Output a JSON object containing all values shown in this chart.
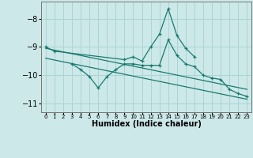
{
  "xlabel": "Humidex (Indice chaleur)",
  "bg_color": "#cce8e8",
  "grid_color": "#aad4d4",
  "line_color": "#1a7a6e",
  "xlim": [
    -0.5,
    23.5
  ],
  "ylim": [
    -11.3,
    -7.4
  ],
  "yticks": [
    -11,
    -10,
    -9,
    -8
  ],
  "xticks": [
    0,
    1,
    2,
    3,
    4,
    5,
    6,
    7,
    8,
    9,
    10,
    11,
    12,
    13,
    14,
    15,
    16,
    17,
    18,
    19,
    20,
    21,
    22,
    23
  ],
  "series": [
    {
      "x": [
        0,
        1,
        9,
        10,
        11,
        12,
        13,
        14,
        15,
        16,
        17
      ],
      "y": [
        -9.0,
        -9.15,
        -9.45,
        -9.35,
        -9.5,
        -9.0,
        -8.55,
        -7.65,
        -8.6,
        -9.05,
        -9.35
      ],
      "marker": true
    },
    {
      "x": [
        3,
        4,
        5,
        6,
        7,
        8,
        9,
        10,
        11,
        12,
        13,
        14,
        15,
        16,
        17,
        18,
        19,
        20,
        21,
        22,
        23
      ],
      "y": [
        -9.6,
        -9.8,
        -10.05,
        -10.45,
        -10.05,
        -9.8,
        -9.6,
        -9.6,
        -9.65,
        -9.65,
        -9.65,
        -8.75,
        -9.3,
        -9.6,
        -9.7,
        -10.0,
        -10.1,
        -10.15,
        -10.5,
        -10.65,
        -10.75
      ],
      "marker": true
    },
    {
      "x": [
        0,
        23
      ],
      "y": [
        -9.05,
        -10.5
      ],
      "marker": false
    },
    {
      "x": [
        0,
        23
      ],
      "y": [
        -9.4,
        -10.85
      ],
      "marker": false
    }
  ]
}
